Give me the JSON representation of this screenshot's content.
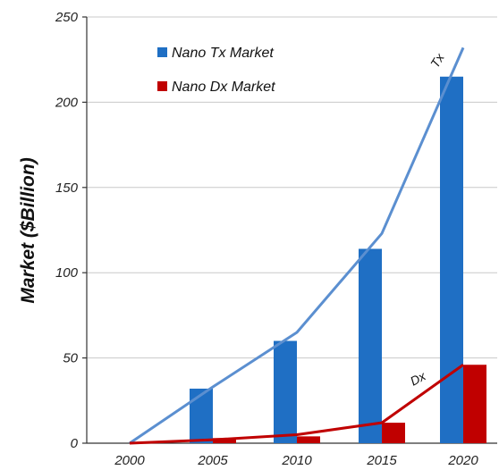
{
  "chart_data": {
    "type": "bar",
    "title": "",
    "xlabel": "",
    "ylabel": "Market ($Billion)",
    "categories": [
      "2000",
      "2005",
      "2010",
      "2015",
      "2020"
    ],
    "ylim": [
      0,
      250
    ],
    "yticks": [
      0,
      50,
      100,
      150,
      200,
      250
    ],
    "grid": true,
    "legend_position": "top-left",
    "series": [
      {
        "name": "Nano Tx Market",
        "values": [
          0,
          32,
          60,
          114,
          215
        ],
        "color": "#1f6fc4"
      },
      {
        "name": "Nano Dx Market",
        "values": [
          0,
          3,
          4,
          12,
          46
        ],
        "color": "#c00000"
      }
    ],
    "trend_lines": [
      {
        "label": "Tx",
        "values": [
          0,
          33,
          65,
          123,
          232
        ],
        "color": "#5b8fd0"
      },
      {
        "label": "Dx",
        "values": [
          0,
          2,
          5,
          12,
          46
        ],
        "color": "#c00000"
      }
    ]
  }
}
